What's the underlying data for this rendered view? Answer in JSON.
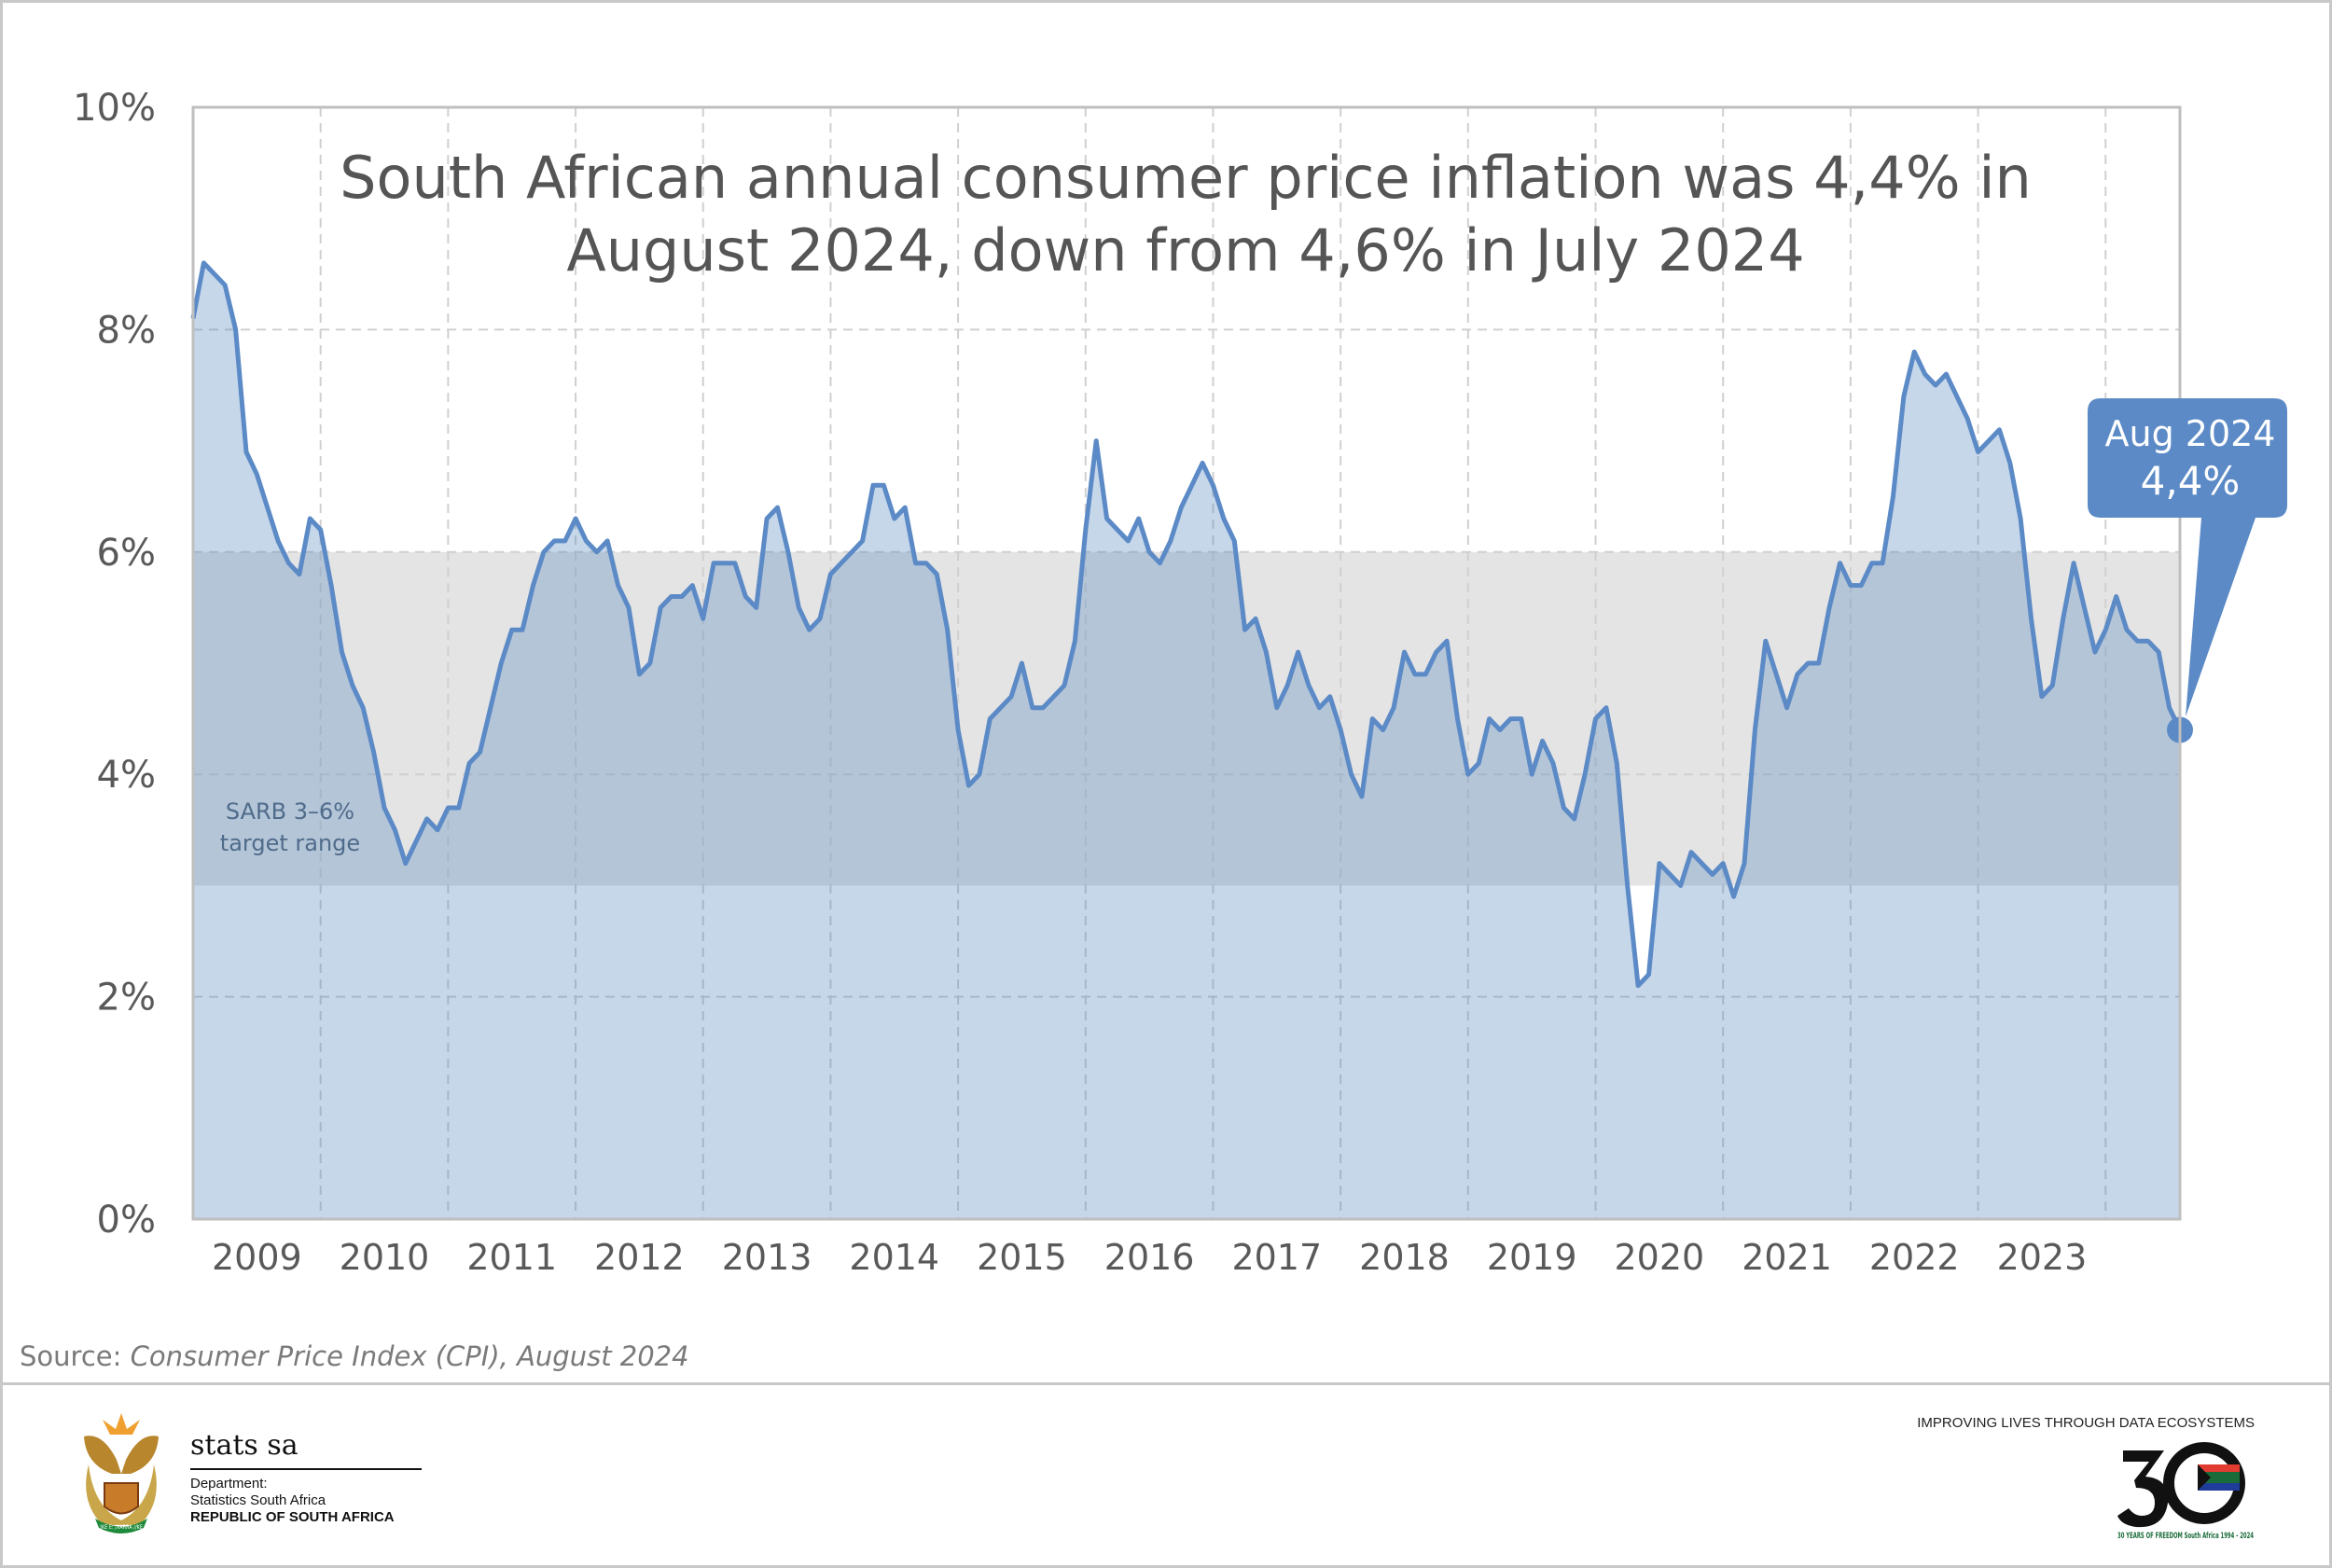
{
  "chart_data": {
    "type": "area",
    "title": "South African annual consumer price inflation was 4,4% in August 2024, down from 4,6% in July 2024",
    "title_lines": [
      "South African annual consumer price inflation was 4,4% in",
      "August 2024, down from 4,6% in July 2024"
    ],
    "xlabel": "",
    "ylabel": "",
    "ylim": [
      0,
      10
    ],
    "y_ticks": [
      "0%",
      "2%",
      "4%",
      "6%",
      "8%",
      "10%"
    ],
    "x_tick_labels": [
      "2009",
      "2010",
      "2011",
      "2012",
      "2013",
      "2014",
      "2015",
      "2016",
      "2017",
      "2018",
      "2019",
      "2020",
      "2021",
      "2022",
      "2023"
    ],
    "x_start": "2009-01",
    "x_end": "2024-08",
    "frequency": "monthly",
    "grid": true,
    "line_color": "#5b8ac6",
    "fill_color": "#c6d7ea",
    "target_band": {
      "low": 3,
      "high": 6,
      "label_lines": [
        "SARB 3–6%",
        "target range"
      ],
      "color": "#e4e4e4"
    },
    "callout": {
      "line1": "Aug 2024",
      "line2": "4,4%",
      "color": "#5b8ac6"
    },
    "values": [
      8.1,
      8.6,
      8.5,
      8.4,
      8.0,
      6.9,
      6.7,
      6.4,
      6.1,
      5.9,
      5.8,
      6.3,
      6.2,
      5.7,
      5.1,
      4.8,
      4.6,
      4.2,
      3.7,
      3.5,
      3.2,
      3.4,
      3.6,
      3.5,
      3.7,
      3.7,
      4.1,
      4.2,
      4.6,
      5.0,
      5.3,
      5.3,
      5.7,
      6.0,
      6.1,
      6.1,
      6.3,
      6.1,
      6.0,
      6.1,
      5.7,
      5.5,
      4.9,
      5.0,
      5.5,
      5.6,
      5.6,
      5.7,
      5.4,
      5.9,
      5.9,
      5.9,
      5.6,
      5.5,
      6.3,
      6.4,
      6.0,
      5.5,
      5.3,
      5.4,
      5.8,
      5.9,
      6.0,
      6.1,
      6.6,
      6.6,
      6.3,
      6.4,
      5.9,
      5.9,
      5.8,
      5.3,
      4.4,
      3.9,
      4.0,
      4.5,
      4.6,
      4.7,
      5.0,
      4.6,
      4.6,
      4.7,
      4.8,
      5.2,
      6.2,
      7.0,
      6.3,
      6.2,
      6.1,
      6.3,
      6.0,
      5.9,
      6.1,
      6.4,
      6.6,
      6.8,
      6.6,
      6.3,
      6.1,
      5.3,
      5.4,
      5.1,
      4.6,
      4.8,
      5.1,
      4.8,
      4.6,
      4.7,
      4.4,
      4.0,
      3.8,
      4.5,
      4.4,
      4.6,
      5.1,
      4.9,
      4.9,
      5.1,
      5.2,
      4.5,
      4.0,
      4.1,
      4.5,
      4.4,
      4.5,
      4.5,
      4.0,
      4.3,
      4.1,
      3.7,
      3.6,
      4.0,
      4.5,
      4.6,
      4.1,
      3.0,
      2.1,
      2.2,
      3.2,
      3.1,
      3.0,
      3.3,
      3.2,
      3.1,
      3.2,
      2.9,
      3.2,
      4.4,
      5.2,
      4.9,
      4.6,
      4.9,
      5.0,
      5.0,
      5.5,
      5.9,
      5.7,
      5.7,
      5.9,
      5.9,
      6.5,
      7.4,
      7.8,
      7.6,
      7.5,
      7.6,
      7.4,
      7.2,
      6.9,
      7.0,
      7.1,
      6.8,
      6.3,
      5.4,
      4.7,
      4.8,
      5.4,
      5.9,
      5.5,
      5.1,
      5.3,
      5.6,
      5.3,
      5.2,
      5.2,
      5.1,
      4.6,
      4.4
    ]
  },
  "source": {
    "prefix": "Source: ",
    "text": "Consumer Price Index (CPI), August 2024"
  },
  "footer": {
    "org_name": "stats sa",
    "dept_line1": "Department:",
    "dept_line2": "Statistics South Africa",
    "dept_line3": "REPUBLIC OF SOUTH AFRICA",
    "slogan": "IMPROVING LIVES THROUGH DATA ECOSYSTEMS",
    "anniversary_logo_text": "30 YEARS OF FREEDOM South Africa 1994 - 2024",
    "coat_of_arms_motto": "!KE E: /XARRA //KE"
  }
}
